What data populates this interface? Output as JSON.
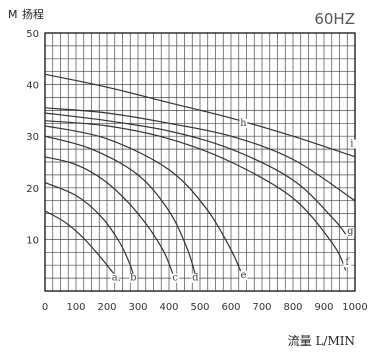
{
  "chart_data": {
    "type": "line",
    "title": "",
    "frequency_label": "60HZ",
    "ylabel_unit": "M",
    "ylabel": "扬程",
    "xlabel": "流量 L/MIN",
    "xlim": [
      0,
      1000
    ],
    "ylim": [
      0,
      50
    ],
    "x_ticks": [
      "0",
      "100",
      "200",
      "300",
      "400",
      "500",
      "600",
      "700",
      "800",
      "900",
      "1000"
    ],
    "y_ticks": [
      "10",
      "20",
      "30",
      "40",
      "50"
    ],
    "grid": true,
    "legend": "none",
    "series": [
      {
        "name": "a",
        "x": [
          0,
          60,
          120,
          180,
          220,
          240
        ],
        "y": [
          15.5,
          13.5,
          10.5,
          6.5,
          3.5,
          2
        ]
      },
      {
        "name": "b",
        "x": [
          0,
          100,
          180,
          240,
          275,
          290
        ],
        "y": [
          21,
          18.5,
          14.5,
          9.5,
          5,
          2
        ]
      },
      {
        "name": "c",
        "x": [
          0,
          100,
          200,
          300,
          380,
          420
        ],
        "y": [
          26,
          24.5,
          21,
          15,
          8,
          2
        ]
      },
      {
        "name": "d",
        "x": [
          0,
          150,
          300,
          400,
          460,
          490
        ],
        "y": [
          30,
          27.5,
          22.5,
          15.5,
          8,
          2
        ]
      },
      {
        "name": "e",
        "x": [
          0,
          200,
          400,
          520,
          600,
          640
        ],
        "y": [
          32,
          29.5,
          23.5,
          16,
          8,
          2.5
        ]
      },
      {
        "name": "f",
        "x": [
          0,
          200,
          400,
          600,
          800,
          930,
          970
        ],
        "y": [
          33,
          32,
          29.5,
          25,
          18,
          9,
          4
        ]
      },
      {
        "name": "g",
        "x": [
          0,
          200,
          400,
          600,
          800,
          930,
          970
        ],
        "y": [
          34.5,
          33,
          31,
          27.5,
          21.5,
          14,
          11
        ]
      },
      {
        "name": "h",
        "x": [
          0,
          200,
          400,
          600,
          800,
          1000
        ],
        "y": [
          35.5,
          34.5,
          32.5,
          30,
          25.5,
          17.5
        ]
      },
      {
        "name": "i",
        "x": [
          0,
          200,
          400,
          600,
          800,
          1000
        ],
        "y": [
          42,
          39.5,
          36.5,
          33.5,
          30,
          26
        ]
      }
    ],
    "curve_labels": [
      {
        "text": "a",
        "x": 225,
        "y": 2
      },
      {
        "text": "b",
        "x": 285,
        "y": 2
      },
      {
        "text": "c",
        "x": 420,
        "y": 2
      },
      {
        "text": "d",
        "x": 485,
        "y": 2
      },
      {
        "text": "e",
        "x": 640,
        "y": 2.5
      },
      {
        "text": "f",
        "x": 975,
        "y": 5
      },
      {
        "text": "g",
        "x": 985,
        "y": 11
      },
      {
        "text": "h",
        "x": 640,
        "y": 32
      },
      {
        "text": "i",
        "x": 990,
        "y": 28
      }
    ]
  }
}
